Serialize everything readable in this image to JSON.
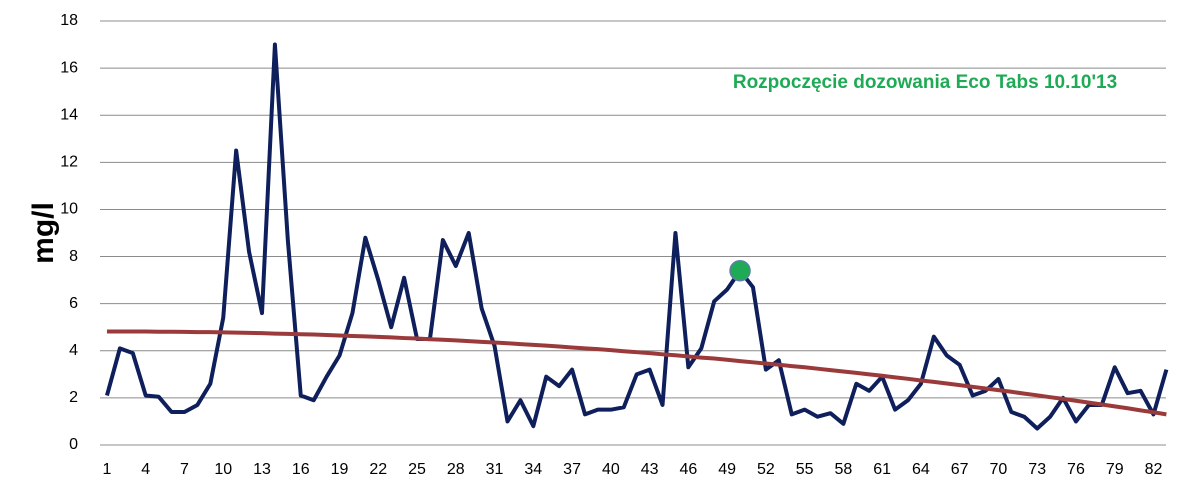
{
  "chart_data": {
    "type": "line",
    "ylabel": "mg/l",
    "annotation": "Rozpoczęcie dozowania Eco Tabs 10.10'13",
    "annotation_color": "#1faa55",
    "marker": {
      "index": 49,
      "color": "#1faa55"
    },
    "categories": [
      "1",
      null,
      null,
      "4",
      null,
      null,
      "7",
      null,
      null,
      "10",
      null,
      null,
      "13",
      null,
      null,
      "16",
      null,
      null,
      "19",
      null,
      null,
      "22",
      null,
      null,
      "25",
      null,
      null,
      "28",
      null,
      null,
      "31",
      null,
      null,
      "34",
      null,
      null,
      "37",
      null,
      null,
      "40",
      null,
      null,
      "43",
      null,
      null,
      "46",
      null,
      null,
      "49",
      null,
      null,
      "52",
      null,
      null,
      "55",
      null,
      null,
      "58",
      null,
      null,
      "61",
      null,
      null,
      "64",
      null,
      null,
      "67",
      null,
      null,
      "70",
      null,
      null,
      "73",
      null,
      null,
      "76",
      null,
      null,
      "79",
      null,
      null,
      "82",
      null
    ],
    "series": [
      {
        "color": "#0e1f5b",
        "values": [
          2.1,
          4.1,
          3.9,
          2.1,
          2.05,
          1.4,
          1.4,
          1.7,
          2.6,
          5.4,
          12.5,
          8.2,
          5.6,
          17,
          8.7,
          2.1,
          1.9,
          2.9,
          3.8,
          5.6,
          8.8,
          7.0,
          5.0,
          7.1,
          4.5,
          4.5,
          8.7,
          7.6,
          9.0,
          5.8,
          4.2,
          1.0,
          1.9,
          0.8,
          2.9,
          2.5,
          3.2,
          1.3,
          1.5,
          1.5,
          1.6,
          3.0,
          3.2,
          1.7,
          9.0,
          3.3,
          4.1,
          6.1,
          6.6,
          7.4,
          6.7,
          3.2,
          3.6,
          1.3,
          1.5,
          1.2,
          1.35,
          0.9,
          2.6,
          2.3,
          2.9,
          1.5,
          1.9,
          2.6,
          4.6,
          3.8,
          3.4,
          2.1,
          2.3,
          2.8,
          1.4,
          1.2,
          0.7,
          1.2,
          2.0,
          1.0,
          1.7,
          1.7,
          3.3,
          2.2,
          2.3,
          1.3,
          3.2
        ]
      },
      {
        "color": "#9b3a3a",
        "values": [
          4.82,
          4.82,
          4.82,
          4.82,
          4.81,
          4.81,
          4.8,
          4.79,
          4.79,
          4.78,
          4.77,
          4.76,
          4.75,
          4.73,
          4.72,
          4.7,
          4.69,
          4.67,
          4.65,
          4.63,
          4.61,
          4.59,
          4.57,
          4.54,
          4.52,
          4.49,
          4.47,
          4.44,
          4.41,
          4.38,
          4.35,
          4.32,
          4.28,
          4.25,
          4.22,
          4.18,
          4.14,
          4.1,
          4.07,
          4.03,
          3.98,
          3.94,
          3.9,
          3.85,
          3.81,
          3.76,
          3.71,
          3.67,
          3.62,
          3.56,
          3.51,
          3.46,
          3.41,
          3.35,
          3.3,
          3.24,
          3.18,
          3.12,
          3.06,
          3.0,
          2.94,
          2.87,
          2.81,
          2.74,
          2.68,
          2.61,
          2.54,
          2.47,
          2.4,
          2.33,
          2.26,
          2.18,
          2.11,
          2.03,
          1.96,
          1.88,
          1.8,
          1.72,
          1.64,
          1.56,
          1.47,
          1.39,
          1.3
        ]
      }
    ],
    "ylim": [
      0,
      18
    ],
    "yticks": [
      0,
      2,
      4,
      6,
      8,
      10,
      12,
      14,
      16,
      18
    ],
    "grid": true
  }
}
